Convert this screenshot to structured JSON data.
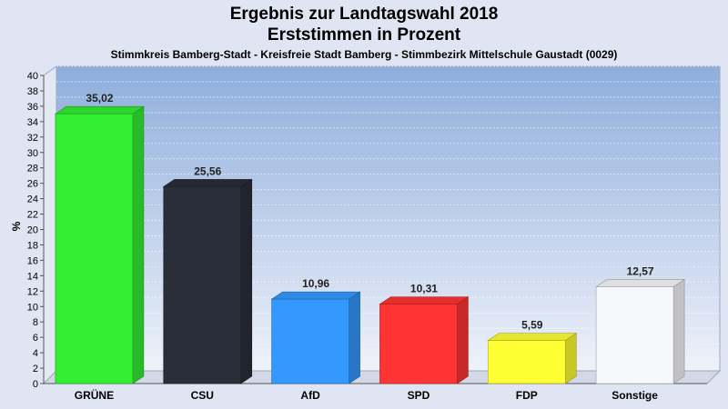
{
  "chart_data": {
    "type": "bar",
    "title_lines": [
      "Ergebnis zur Landtagswahl 2018",
      "Erststimmen in Prozent"
    ],
    "subtitle": "Stimmkreis Bamberg-Stadt - Kreisfreie Stadt Bamberg - Stimmbezirk Mittelschule Gaustadt (0029)",
    "ylabel": "%",
    "xlabel": "",
    "ylim": [
      0,
      40
    ],
    "ytick_step": 2,
    "grid": true,
    "categories": [
      "GRÜNE",
      "CSU",
      "AfD",
      "SPD",
      "FDP",
      "Sonstige"
    ],
    "values": [
      35.02,
      25.56,
      10.96,
      10.31,
      5.59,
      12.57
    ],
    "value_labels": [
      "35,02",
      "25,56",
      "10,96",
      "10,31",
      "5,59",
      "12,57"
    ],
    "colors": [
      "#33ee33",
      "#2a2e38",
      "#3399ff",
      "#ff3333",
      "#ffff33",
      "#f7f8fc"
    ]
  }
}
